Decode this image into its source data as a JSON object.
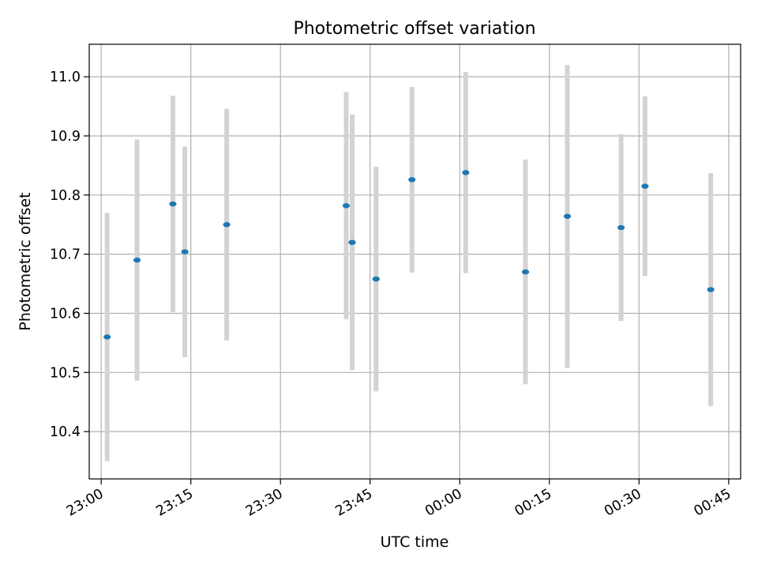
{
  "chart_data": {
    "type": "scatter",
    "title": "Photometric offset variation",
    "xlabel": "UTC time",
    "ylabel": "Photometric offset",
    "x_axis_type": "time",
    "x_start": "23:00",
    "xlim": [
      "22:58",
      "00:47"
    ],
    "ylim": [
      10.32,
      11.055
    ],
    "x_ticks": [
      "23:00",
      "23:15",
      "23:30",
      "23:45",
      "00:00",
      "00:15",
      "00:30",
      "00:45"
    ],
    "y_ticks": [
      10.4,
      10.5,
      10.6,
      10.7,
      10.8,
      10.9,
      11.0
    ],
    "y_tick_labels": [
      "10.4",
      "10.5",
      "10.6",
      "10.7",
      "10.8",
      "10.9",
      "11.0"
    ],
    "grid": true,
    "series": [
      {
        "color": "#1f77b4",
        "errorbar_color": "#d3d3d3",
        "points": [
          {
            "x": "23:01",
            "y": 10.56,
            "err": 0.21
          },
          {
            "x": "23:06",
            "y": 10.69,
            "err": 0.204
          },
          {
            "x": "23:12",
            "y": 10.785,
            "err": 0.183
          },
          {
            "x": "23:14",
            "y": 10.704,
            "err": 0.178
          },
          {
            "x": "23:21",
            "y": 10.75,
            "err": 0.196
          },
          {
            "x": "23:41",
            "y": 10.782,
            "err": 0.192
          },
          {
            "x": "23:42",
            "y": 10.72,
            "err": 0.216
          },
          {
            "x": "23:46",
            "y": 10.658,
            "err": 0.19
          },
          {
            "x": "23:52",
            "y": 10.826,
            "err": 0.157
          },
          {
            "x": "00:01",
            "y": 10.838,
            "err": 0.17
          },
          {
            "x": "00:11",
            "y": 10.67,
            "err": 0.19
          },
          {
            "x": "00:18",
            "y": 10.764,
            "err": 0.256
          },
          {
            "x": "00:27",
            "y": 10.745,
            "err": 0.158
          },
          {
            "x": "00:31",
            "y": 10.815,
            "err": 0.152
          },
          {
            "x": "00:42",
            "y": 10.64,
            "err": 0.197
          }
        ]
      }
    ]
  }
}
